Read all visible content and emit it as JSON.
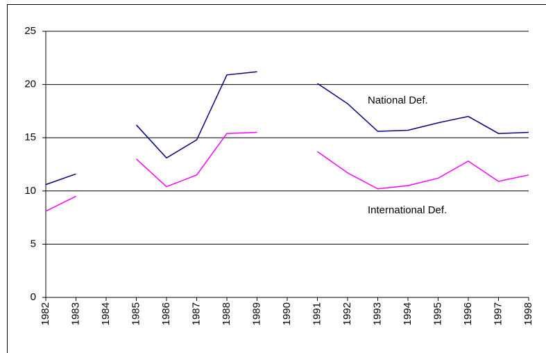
{
  "chart_data": {
    "type": "line",
    "categories": [
      "1982",
      "1983",
      "1984",
      "1985",
      "1986",
      "1987",
      "1988",
      "1989",
      "1990",
      "1991",
      "1992",
      "1993",
      "1994",
      "1995",
      "1996",
      "1997",
      "1998"
    ],
    "series": [
      {
        "name": "National Def.",
        "color": "#000080",
        "values": [
          10.6,
          11.6,
          null,
          16.2,
          13.1,
          14.8,
          20.9,
          21.2,
          null,
          20.1,
          18.2,
          15.6,
          15.7,
          16.4,
          17.0,
          15.4,
          15.5
        ]
      },
      {
        "name": "International Def.",
        "color": "#ff00ff",
        "values": [
          8.1,
          9.5,
          null,
          13.0,
          10.4,
          11.5,
          15.4,
          15.5,
          null,
          13.7,
          11.7,
          10.2,
          10.5,
          11.2,
          12.8,
          10.9,
          11.5
        ]
      }
    ],
    "ylim": [
      0,
      25
    ],
    "yticks": [
      0,
      5,
      10,
      15,
      20,
      25
    ],
    "grid": true
  }
}
